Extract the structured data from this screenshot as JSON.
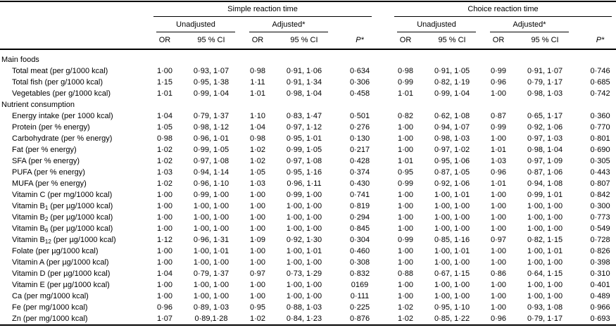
{
  "page": {
    "background_color": "#ffffff",
    "text_color": "#000000",
    "rule_color": "#000000"
  },
  "table": {
    "groups": [
      {
        "label": "Simple reaction time"
      },
      {
        "label": "Choice reaction time"
      }
    ],
    "subgroups": [
      "Unadjusted",
      "Adjusted*",
      "Unadjusted",
      "Adjusted*"
    ],
    "col_headers": [
      "OR",
      "95 % CI",
      "OR",
      "95 % CI",
      "P*",
      "OR",
      "95 % CI",
      "OR",
      "95 % CI",
      "P*"
    ],
    "rows": [
      {
        "type": "section",
        "label": "Main foods"
      },
      {
        "type": "data",
        "label": "Total meat (per g/1000 kcal)",
        "values": [
          "1·00",
          "0·93, 1·07",
          "0·98",
          "0·91, 1·06",
          "0·634",
          "0·98",
          "0·91, 1·05",
          "0·99",
          "0·91, 1·07",
          "0·746"
        ]
      },
      {
        "type": "data",
        "label": "Total fish (per g/1000 kcal)",
        "values": [
          "1·15",
          "0·95, 1·38",
          "1·11",
          "0·91, 1·34",
          "0·306",
          "0·99",
          "0·82, 1·19",
          "0·96",
          "0·79, 1·17",
          "0·685"
        ]
      },
      {
        "type": "data",
        "label": "Vegetables (per g/1000 kcal)",
        "values": [
          "1·01",
          "0·99, 1·04",
          "1·01",
          "0·98, 1·04",
          "0·458",
          "1·01",
          "0·99, 1·04",
          "1·00",
          "0·98, 1·03",
          "0·742"
        ]
      },
      {
        "type": "section",
        "label": "Nutrient consumption"
      },
      {
        "type": "data",
        "label": "Energy intake (per 1000 kcal)",
        "values": [
          "1·04",
          "0·79, 1·37",
          "1·10",
          "0·83, 1·47",
          "0·501",
          "0·82",
          "0·62, 1·08",
          "0·87",
          "0·65, 1·17",
          "0·360"
        ]
      },
      {
        "type": "data",
        "label": "Protein (per % energy)",
        "values": [
          "1·05",
          "0·98, 1·12",
          "1·04",
          "0·97, 1·12",
          "0·276",
          "1·00",
          "0·94, 1·07",
          "0·99",
          "0·92, 1·06",
          "0·770"
        ]
      },
      {
        "type": "data",
        "label": "Carbohydrate (per % energy)",
        "values": [
          "0·98",
          "0·96, 1·01",
          "0·98",
          "0·95, 1·01",
          "0·130",
          "1·00",
          "0·98, 1·03",
          "1·00",
          "0·97, 1·03",
          "0·801"
        ]
      },
      {
        "type": "data",
        "label": "Fat (per % energy)",
        "values": [
          "1·02",
          "0·99, 1·05",
          "1·02",
          "0·99, 1·05",
          "0·217",
          "1·00",
          "0·97, 1·02",
          "1·01",
          "0·98, 1·04",
          "0·690"
        ]
      },
      {
        "type": "data",
        "label": "SFA (per % energy)",
        "values": [
          "1·02",
          "0·97, 1·08",
          "1·02",
          "0·97, 1·08",
          "0·428",
          "1·01",
          "0·95, 1·06",
          "1·03",
          "0·97, 1·09",
          "0·305"
        ]
      },
      {
        "type": "data",
        "label": "PUFA (per % energy)",
        "values": [
          "1·03",
          "0·94, 1·14",
          "1·05",
          "0·95, 1·16",
          "0·374",
          "0·95",
          "0·87, 1·05",
          "0·96",
          "0·87, 1·06",
          "0·443"
        ]
      },
      {
        "type": "data",
        "label": "MUFA (per % energy)",
        "values": [
          "1·02",
          "0·96, 1·10",
          "1·03",
          "0·96, 1·11",
          "0·430",
          "0·99",
          "0·92, 1·06",
          "1·01",
          "0·94, 1·08",
          "0·807"
        ]
      },
      {
        "type": "data",
        "label": "Vitamin C (per mg/1000 kcal)",
        "values": [
          "1·00",
          "0·99, 1·00",
          "1·00",
          "0·99, 1·00",
          "0·741",
          "1·00",
          "1·00, 1·01",
          "1·00",
          "0·99, 1·01",
          "0·842"
        ]
      },
      {
        "type": "data",
        "label": "Vitamin B|1| (per µg/1000 kcal)",
        "values": [
          "1·00",
          "1·00, 1·00",
          "1·00",
          "1·00, 1·00",
          "0·819",
          "1·00",
          "1·00, 1·00",
          "1·00",
          "1·00, 1·00",
          "0·300"
        ]
      },
      {
        "type": "data",
        "label": "Vitamin B|2| (per µg/1000 kcal)",
        "values": [
          "1·00",
          "1·00, 1·00",
          "1·00",
          "1·00, 1·00",
          "0·294",
          "1·00",
          "1·00, 1·00",
          "1·00",
          "1·00, 1·00",
          "0·773"
        ]
      },
      {
        "type": "data",
        "label": "Vitamin B|6| (per µg/1000 kcal)",
        "values": [
          "1·00",
          "1·00, 1·00",
          "1·00",
          "1·00, 1·00",
          "0·845",
          "1·00",
          "1·00, 1·00",
          "1·00",
          "1·00, 1·00",
          "0·549"
        ]
      },
      {
        "type": "data",
        "label": "Vitamin B|12| (per µg/1000 kcal)",
        "values": [
          "1·12",
          "0·96, 1·31",
          "1·09",
          "0·92, 1·30",
          "0·304",
          "0·99",
          "0·85, 1·16",
          "0·97",
          "0·82, 1·15",
          "0·728"
        ]
      },
      {
        "type": "data",
        "label": "Folate (per µg/1000 kcal)",
        "values": [
          "1·00",
          "1·00, 1·01",
          "1·00",
          "1·00, 1·01",
          "0·460",
          "1·00",
          "1·00, 1·01",
          "1·00",
          "1·00, 1·01",
          "0·826"
        ]
      },
      {
        "type": "data",
        "label": "Vitamin A (per µg/1000 kcal)",
        "values": [
          "1·00",
          "1·00, 1·00",
          "1·00",
          "1·00, 1·00",
          "0·308",
          "1·00",
          "1·00, 1·00",
          "1·00",
          "1·00, 1·00",
          "0·398"
        ]
      },
      {
        "type": "data",
        "label": "Vitamin D (per µg/1000 kcal)",
        "values": [
          "1·04",
          "0·79, 1·37",
          "0·97",
          "0·73, 1·29",
          "0·832",
          "0·88",
          "0·67, 1·15",
          "0·86",
          "0·64, 1·15",
          "0·310"
        ]
      },
      {
        "type": "data",
        "label": "Vitamin E (per µg/1000 kcal)",
        "values": [
          "1·00",
          "1·00, 1·00",
          "1·00",
          "1·00, 1·00",
          "0169",
          "1·00",
          "1·00, 1·00",
          "1·00",
          "1·00, 1·00",
          "0·401"
        ]
      },
      {
        "type": "data",
        "label": "Ca (per mg/1000 kcal)",
        "values": [
          "1·00",
          "1·00, 1·00",
          "1·00",
          "1·00, 1·00",
          "0·111",
          "1·00",
          "1·00, 1·00",
          "1·00",
          "1·00, 1·00",
          "0·489"
        ]
      },
      {
        "type": "data",
        "label": "Fe (per mg/1000 kcal)",
        "values": [
          "0·96",
          "0·89, 1·03",
          "0·95",
          "0·88, 1·03",
          "0·225",
          "1·02",
          "0·95, 1·10",
          "1·00",
          "0·93, 1·08",
          "0·966"
        ]
      },
      {
        "type": "data",
        "label": "Zn (per mg/1000 kcal)",
        "values": [
          "1·07",
          "0·89,1·28",
          "1·02",
          "0·84, 1·23",
          "0·876",
          "1·02",
          "0·85, 1·22",
          "0·96",
          "0·79, 1·17",
          "0·693"
        ]
      }
    ]
  }
}
